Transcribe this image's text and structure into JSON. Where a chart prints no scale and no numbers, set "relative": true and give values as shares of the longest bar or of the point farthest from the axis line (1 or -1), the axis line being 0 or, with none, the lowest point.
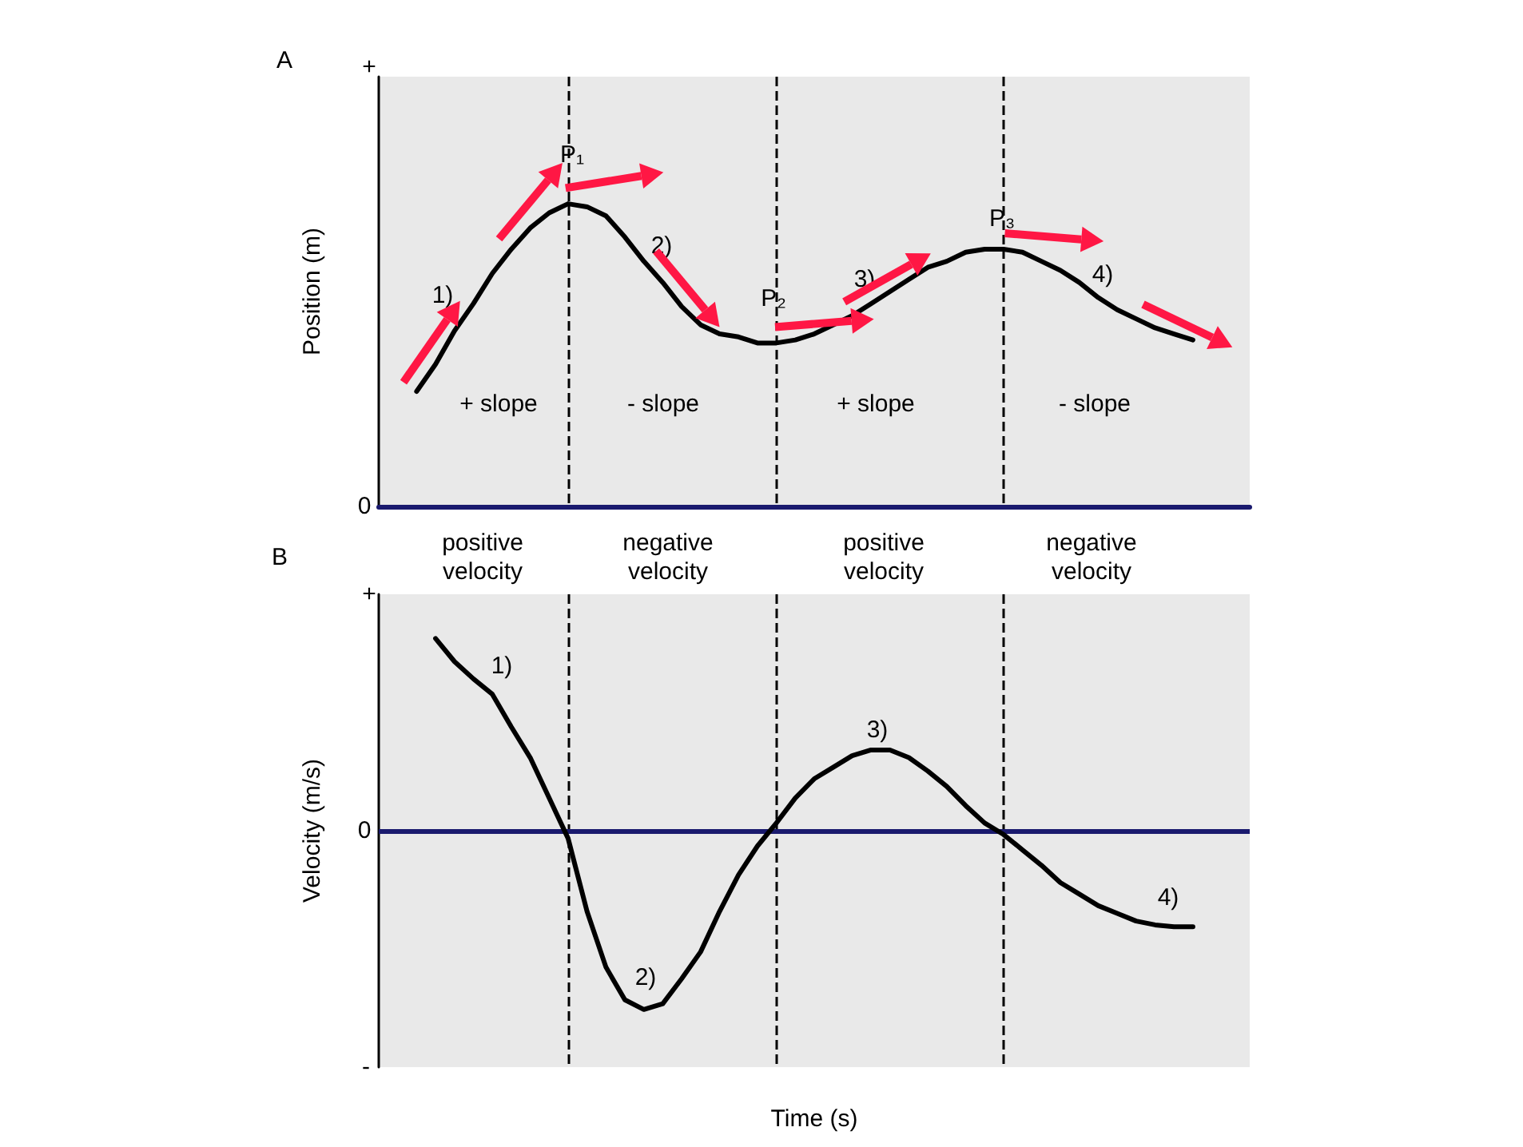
{
  "chart_data": [
    {
      "type": "line",
      "relative": true,
      "ylabel": "Position (m)",
      "categories": [
        null,
        null,
        null,
        null,
        null,
        null,
        null,
        null,
        null,
        null,
        null,
        null,
        null,
        null,
        null,
        null,
        null,
        null,
        null,
        null,
        null,
        null,
        null,
        null,
        null,
        null,
        null,
        null,
        null,
        null,
        null,
        null,
        null,
        null,
        null,
        null,
        null,
        null,
        null,
        null,
        null,
        null,
        null,
        null,
        null,
        null,
        null
      ],
      "series": [
        {
          "color": "#000000",
          "values": [
            null,
            null,
            0.38,
            0.47,
            0.58,
            0.67,
            0.77,
            0.85,
            0.92,
            0.97,
            1,
            0.99,
            0.96,
            0.89,
            0.81,
            0.74,
            0.66,
            0.6,
            0.57,
            0.56,
            0.54,
            0.54,
            0.55,
            0.57,
            0.6,
            0.63,
            0.67,
            0.71,
            0.75,
            0.79,
            0.81,
            0.84,
            0.85,
            0.85,
            0.84,
            0.81,
            0.78,
            0.74,
            0.69,
            0.65,
            0.62,
            0.59,
            0.57,
            0.55,
            null,
            null,
            null
          ]
        }
      ],
      "annotations": [
        "A",
        "+",
        "0",
        "P₁",
        "P₂",
        "P₃",
        "1)",
        "2)",
        "3)",
        "4)",
        "+ slope",
        "- slope",
        "+ slope",
        "- slope"
      ],
      "grid": "x",
      "marker": "none",
      "line_style": "solid"
    },
    {
      "type": "line",
      "relative": true,
      "ylabel": "Velocity (m/s)",
      "xlabel": "Time (s)",
      "categories": [
        null,
        null,
        null,
        null,
        null,
        null,
        null,
        null,
        null,
        null,
        null,
        null,
        null,
        null,
        null,
        null,
        null,
        null,
        null,
        null,
        null,
        null,
        null,
        null,
        null,
        null,
        null,
        null,
        null,
        null,
        null,
        null,
        null,
        null,
        null,
        null,
        null,
        null,
        null,
        null,
        null,
        null,
        null,
        null,
        null,
        null,
        null
      ],
      "series": [
        {
          "color": "#000000",
          "values": [
            null,
            null,
            null,
            1,
            0.88,
            0.79,
            0.71,
            0.54,
            0.38,
            0.17,
            -0.04,
            -0.42,
            -0.71,
            -0.88,
            -0.93,
            -0.9,
            -0.77,
            -0.63,
            -0.42,
            -0.23,
            -0.08,
            0.04,
            0.17,
            0.27,
            0.33,
            0.39,
            0.42,
            0.42,
            0.38,
            0.31,
            0.23,
            0.13,
            0.04,
            -0.02,
            -0.1,
            -0.18,
            -0.27,
            -0.33,
            -0.39,
            -0.43,
            -0.47,
            -0.49,
            -0.5,
            -0.5,
            null,
            null,
            null
          ]
        }
      ],
      "ref_lines": [
        {
          "axis": "y",
          "value": 0,
          "color": "#1a1a6e",
          "line_style": "solid"
        }
      ],
      "annotations": [
        "B",
        "positive\nvelocity",
        "negative\nvelocity",
        "positive\nvelocity",
        "negative\nvelocity",
        "+",
        "0",
        "-",
        "1)",
        "2)",
        "3)",
        "4)"
      ],
      "grid": "x",
      "marker": "none",
      "line_style": "solid"
    }
  ]
}
